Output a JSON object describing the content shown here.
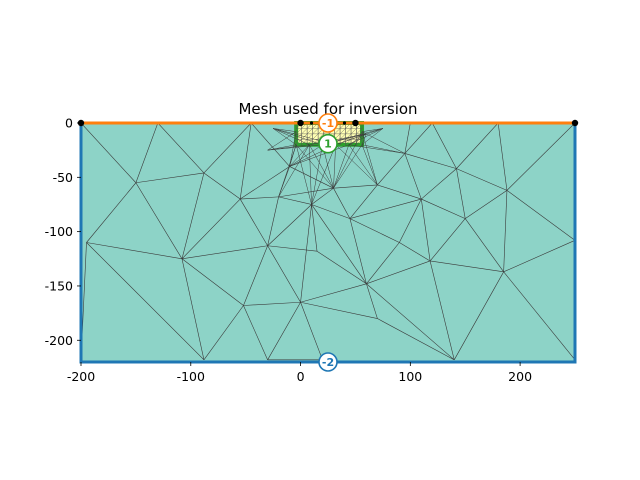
{
  "chart_data": {
    "type": "mesh",
    "title": "Mesh used for inversion",
    "xlabel": "",
    "ylabel": "",
    "xlim": [
      -200,
      250
    ],
    "ylim": [
      -220,
      0
    ],
    "x_ticks": [
      -200,
      -100,
      0,
      100,
      200
    ],
    "x_tick_labels": [
      "-200",
      "-100",
      "0",
      "100",
      "200"
    ],
    "y_ticks": [
      0,
      -50,
      -100,
      -150,
      -200
    ],
    "y_tick_labels": [
      "0",
      "-50",
      "-100",
      "-150",
      "-200"
    ],
    "electrodes_x": [
      0,
      10,
      20,
      30,
      40,
      50
    ],
    "regions": [
      {
        "marker": "-1",
        "color": "#ff7f0e"
      },
      {
        "marker": "1",
        "color": "#2ca02c"
      },
      {
        "marker": "-2",
        "color": "#1f77b4"
      }
    ],
    "colors": {
      "cell_fill": "#8dd3c7",
      "inner_fill": "#ffffb3",
      "inner_border": "#2ca02c",
      "top_boundary": "#ff7f0e",
      "side_bottom_boundary": "#1f77b4",
      "edges": "#3a3a3a"
    }
  }
}
